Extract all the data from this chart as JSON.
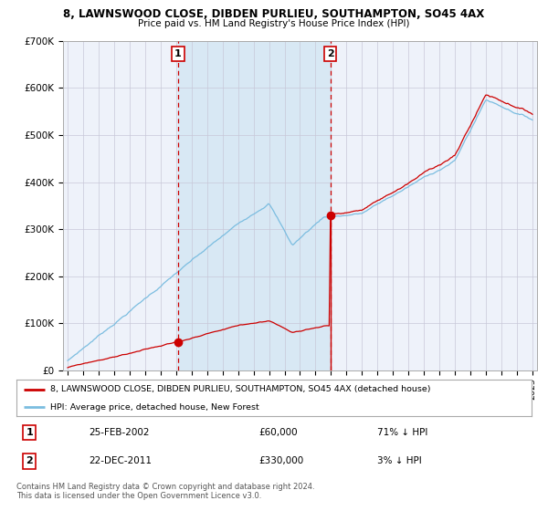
{
  "title": "8, LAWNSWOOD CLOSE, DIBDEN PURLIEU, SOUTHAMPTON, SO45 4AX",
  "subtitle": "Price paid vs. HM Land Registry's House Price Index (HPI)",
  "legend_line1": "8, LAWNSWOOD CLOSE, DIBDEN PURLIEU, SOUTHAMPTON, SO45 4AX (detached house)",
  "legend_line2": "HPI: Average price, detached house, New Forest",
  "transaction1_date": "25-FEB-2002",
  "transaction1_price": 60000,
  "transaction1_pct": "71% ↓ HPI",
  "transaction2_date": "22-DEC-2011",
  "transaction2_price": 330000,
  "transaction2_pct": "3% ↓ HPI",
  "footer": "Contains HM Land Registry data © Crown copyright and database right 2024.\nThis data is licensed under the Open Government Licence v3.0.",
  "hpi_color": "#7bbde0",
  "price_color": "#cc0000",
  "bg_color": "#ffffff",
  "plot_bg_color": "#eef2fa",
  "grid_color": "#c8c8d8",
  "highlight_bg": "#d8e8f4",
  "marker_color": "#cc0000",
  "dashed_line_color": "#cc0000",
  "ylim": [
    0,
    700000
  ],
  "yticks": [
    0,
    100000,
    200000,
    300000,
    400000,
    500000,
    600000,
    700000
  ],
  "ytick_labels": [
    "£0",
    "£100K",
    "£200K",
    "£300K",
    "£400K",
    "£500K",
    "£600K",
    "£700K"
  ],
  "start_year": 1995,
  "end_year": 2025,
  "t1_year": 2002.12,
  "t2_year": 2011.96,
  "t1_price": 60000,
  "t2_price": 330000
}
